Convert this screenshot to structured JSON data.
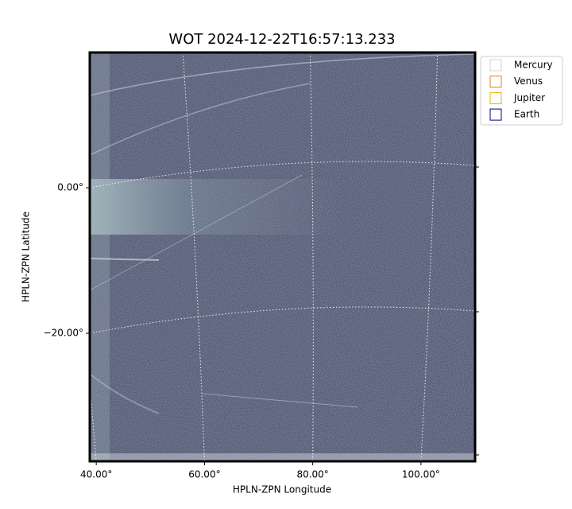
{
  "chart_data": {
    "type": "image",
    "title": "WOT 2024-12-22T16:57:13.233",
    "xlabel": "HPLN-ZPN Longitude",
    "ylabel": "HPLN-ZPN Latitude",
    "xlim": [
      38.8,
      110
    ],
    "ylim": [
      -37.6,
      18.6
    ],
    "xticks": [
      {
        "value": 40,
        "label": "40.00°"
      },
      {
        "value": 60,
        "label": "60.00°"
      },
      {
        "value": 80,
        "label": "80.00°"
      },
      {
        "value": 100,
        "label": "100.00°"
      }
    ],
    "yticks": [
      {
        "value": 0,
        "label": "0.00°"
      },
      {
        "value": -20,
        "label": "−20.00°"
      }
    ],
    "grid": true,
    "legend": "outside right",
    "series": [
      {
        "name": "Mercury",
        "color": "#d3d3d3"
      },
      {
        "name": "Venus",
        "color": "#e07b39"
      },
      {
        "name": "Jupiter",
        "color": "#e8b000"
      },
      {
        "name": "Earth",
        "color": "#000080"
      }
    ]
  }
}
